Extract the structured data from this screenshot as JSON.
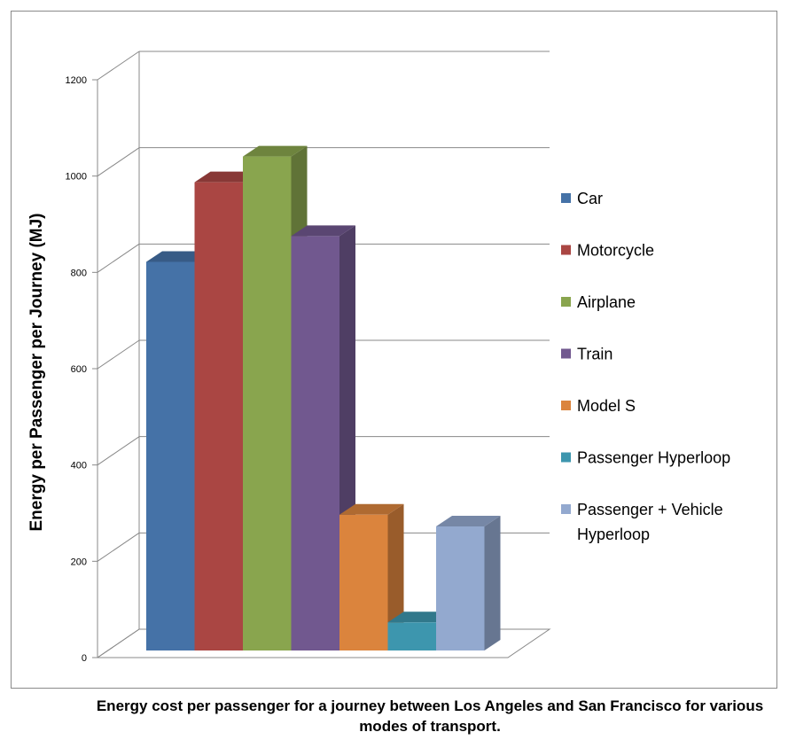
{
  "chart_data": {
    "type": "bar",
    "subtype": "3d-clustered",
    "ylabel": "Energy per Passenger per Journey (MJ)",
    "xlabel": "",
    "ylim": [
      0,
      1200
    ],
    "yticks": [
      "0",
      "200",
      "400",
      "600",
      "800",
      "1000",
      "1200"
    ],
    "grid": true,
    "legend_position": "right",
    "series": [
      {
        "name": "Car",
        "value": 830,
        "color": "#4572A7"
      },
      {
        "name": "Motorcycle",
        "value": 1000,
        "color": "#AA4643"
      },
      {
        "name": "Airplane",
        "value": 1055,
        "color": "#89A54E"
      },
      {
        "name": "Train",
        "value": 885,
        "color": "#71588F"
      },
      {
        "name": "Model S",
        "value": 290,
        "color": "#DB843D"
      },
      {
        "name": "Passenger Hyperloop",
        "value": 60,
        "color": "#3D96AE"
      },
      {
        "name": "Passenger + Vehicle Hyperloop",
        "value": 265,
        "color": "#93A9CF"
      }
    ]
  },
  "caption": "Energy cost per passenger for a journey between Los Angeles and San Francisco for various modes of transport."
}
